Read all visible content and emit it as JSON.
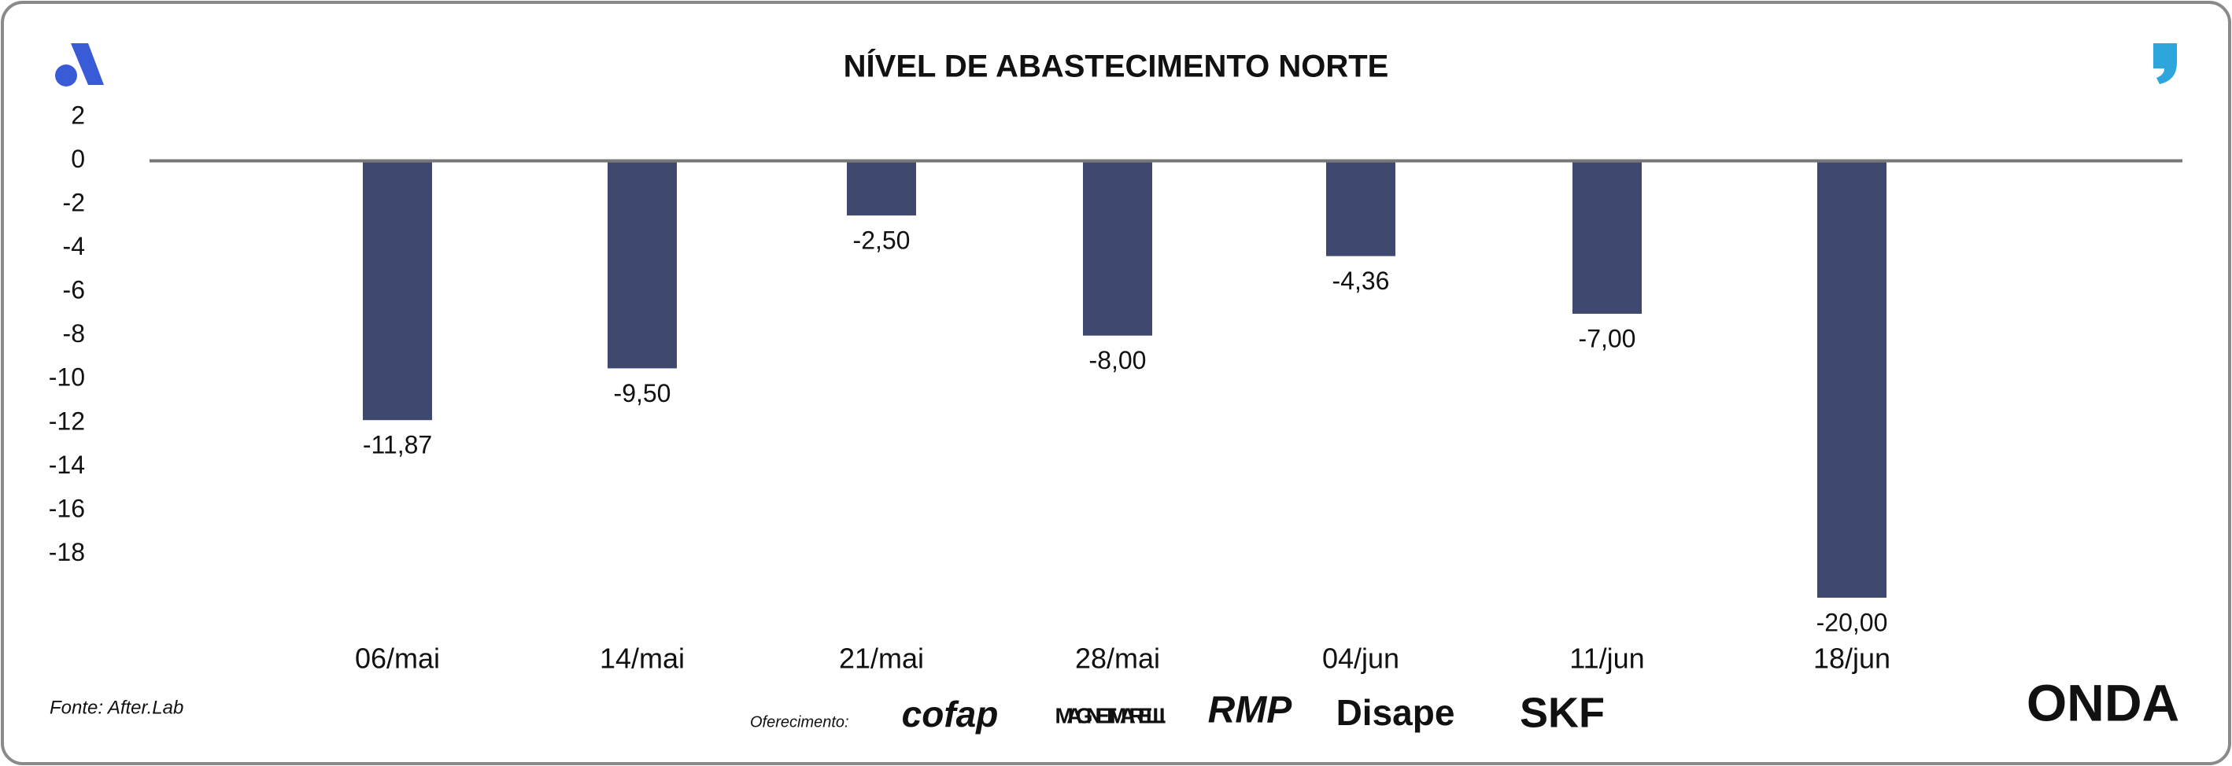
{
  "chart_data": {
    "type": "bar",
    "title": "NÍVEL DE ABASTECIMENTO NORTE",
    "categories": [
      "06/mai",
      "14/mai",
      "21/mai",
      "28/mai",
      "04/jun",
      "11/jun",
      "18/jun"
    ],
    "values": [
      -11.87,
      -9.5,
      -2.5,
      -8,
      -4.36,
      -7,
      -20
    ],
    "value_labels": [
      "-11,87",
      "-9,50",
      "-2,50",
      "-8,00",
      "-4,36",
      "-7,00",
      "-20,00"
    ],
    "color": "#3f486e",
    "ylim": [
      -20,
      2
    ],
    "yticks": [
      2,
      0,
      -2,
      -4,
      -6,
      -8,
      -10,
      -12,
      -14,
      -16,
      -18
    ]
  },
  "footer": {
    "source": "Fonte: After.Lab",
    "sponsor_label": "Oferecimento:",
    "logos": [
      "cofap",
      "MAGNETI MARELLI",
      "RMP",
      "Disape",
      "SKF",
      "ONDA"
    ]
  }
}
